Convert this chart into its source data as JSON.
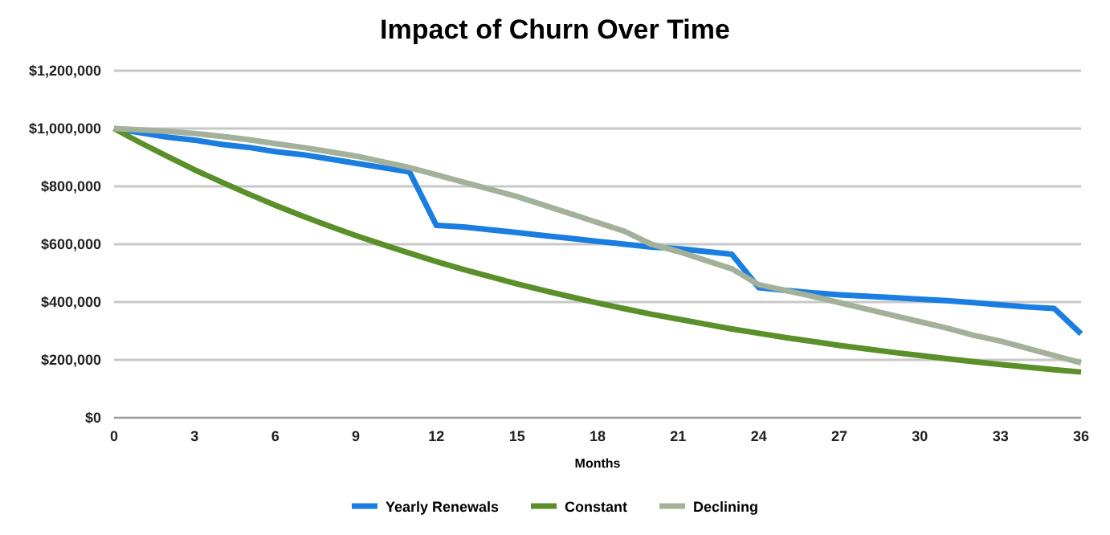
{
  "chart_data": {
    "type": "line",
    "title": "Impact of Churn Over Time",
    "xlabel": "Months",
    "x": [
      0,
      1,
      2,
      3,
      4,
      5,
      6,
      7,
      8,
      9,
      10,
      11,
      12,
      13,
      14,
      15,
      16,
      17,
      18,
      19,
      20,
      21,
      22,
      23,
      24,
      25,
      26,
      27,
      28,
      29,
      30,
      31,
      32,
      33,
      34,
      35,
      36
    ],
    "series": [
      {
        "name": "Yearly Renewals",
        "color": "#1a7de0",
        "values": [
          1000000,
          985000,
          970000,
          960000,
          945000,
          935000,
          920000,
          910000,
          895000,
          880000,
          865000,
          850000,
          665000,
          660000,
          650000,
          640000,
          630000,
          620000,
          610000,
          600000,
          590000,
          585000,
          575000,
          565000,
          450000,
          440000,
          432000,
          425000,
          420000,
          415000,
          410000,
          405000,
          398000,
          390000,
          383000,
          378000,
          290000
        ]
      },
      {
        "name": "Constant",
        "color": "#5b8f29",
        "values": [
          1000000,
          950000,
          903000,
          857000,
          815000,
          774000,
          735000,
          698000,
          663000,
          630000,
          599000,
          569000,
          540000,
          513000,
          488000,
          463000,
          440000,
          418000,
          397000,
          377000,
          358000,
          341000,
          324000,
          307000,
          292000,
          277000,
          264000,
          250000,
          238000,
          226000,
          215000,
          204000,
          194000,
          184000,
          175000,
          166000,
          158000
        ]
      },
      {
        "name": "Declining",
        "color": "#a3b19a",
        "values": [
          1000000,
          995000,
          990000,
          983000,
          973000,
          962000,
          948000,
          935000,
          920000,
          905000,
          885000,
          865000,
          840000,
          815000,
          790000,
          765000,
          735000,
          705000,
          675000,
          645000,
          600000,
          575000,
          545000,
          515000,
          460000,
          440000,
          420000,
          398000,
          376000,
          354000,
          332000,
          310000,
          285000,
          265000,
          240000,
          215000,
          190000
        ]
      }
    ],
    "xlim": [
      0,
      36
    ],
    "xticks": [
      0,
      3,
      6,
      9,
      12,
      15,
      18,
      21,
      24,
      27,
      30,
      33,
      36
    ],
    "ylim": [
      0,
      1200000
    ],
    "yticks": [
      {
        "value": 0,
        "label": "$0"
      },
      {
        "value": 200000,
        "label": "$200,000"
      },
      {
        "value": 400000,
        "label": "$400,000"
      },
      {
        "value": 600000,
        "label": "$600,000"
      },
      {
        "value": 800000,
        "label": "$800,000"
      },
      {
        "value": 1000000,
        "label": "$1,000,000"
      },
      {
        "value": 1200000,
        "label": "$1,200,000"
      }
    ],
    "grid": "y",
    "legend": "bottom",
    "marker": "none",
    "line_style": "solid"
  }
}
